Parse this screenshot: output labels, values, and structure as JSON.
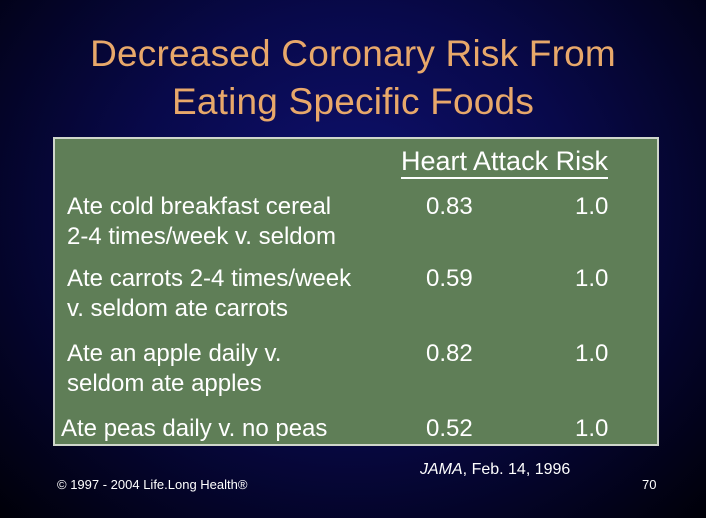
{
  "slide": {
    "title_line1": "Decreased Coronary Risk From",
    "title_line2": "Eating Specific Foods",
    "table_header": "Heart Attack Risk",
    "rows": [
      {
        "label_line1": "Ate cold breakfast cereal",
        "label_line2": "2-4 times/week v. seldom",
        "risk": "0.83",
        "reference": "1.0"
      },
      {
        "label_line1": "Ate carrots 2-4 times/week",
        "label_line2": "v. seldom ate carrots",
        "risk": "0.59",
        "reference": "1.0"
      },
      {
        "label_line1": "Ate an apple daily v.",
        "label_line2": "seldom ate apples",
        "risk": "0.82",
        "reference": "1.0"
      },
      {
        "label_line1": "Ate peas daily v. no peas",
        "label_line2": "",
        "risk": "0.52",
        "reference": "1.0"
      }
    ],
    "citation_journal": "JAMA",
    "citation_rest": ", Feb. 14, 1996",
    "copyright": "© 1997 - 2004 Life.Long Health®",
    "page_number": "70"
  }
}
